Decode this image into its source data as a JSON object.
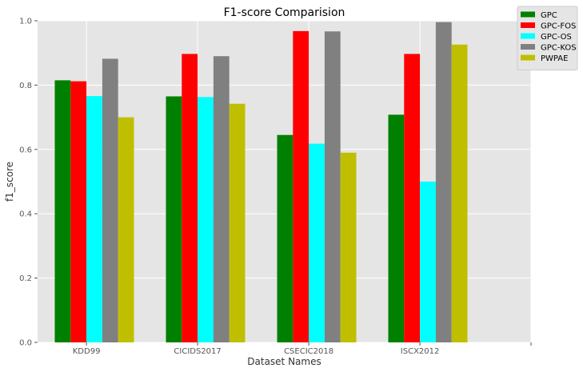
{
  "chart_data": {
    "type": "bar",
    "title": "F1-score Comparision",
    "xlabel": "Dataset Names",
    "ylabel": "f1_score",
    "categories": [
      "KDD99",
      "CICIDS2017",
      "CSECIC2018",
      "ISCX2012"
    ],
    "ylim": [
      0,
      1.0
    ],
    "yticks": [
      "0.0",
      "0.2",
      "0.4",
      "0.6",
      "0.8",
      "1.0"
    ],
    "grid": true,
    "legend_position": "top-right",
    "background_color": "#e5e5e5",
    "series": [
      {
        "name": "GPC",
        "color": "#008000",
        "values": [
          0.815,
          0.765,
          0.645,
          0.708
        ]
      },
      {
        "name": "GPC-FOS",
        "color": "#ff0000",
        "values": [
          0.812,
          0.897,
          0.968,
          0.897
        ]
      },
      {
        "name": "GPC-OS",
        "color": "#00ffff",
        "values": [
          0.766,
          0.763,
          0.618,
          0.5
        ]
      },
      {
        "name": "GPC-KOS",
        "color": "#808080",
        "values": [
          0.882,
          0.89,
          0.967,
          0.996
        ]
      },
      {
        "name": "PWPAE",
        "color": "#bfbf00",
        "values": [
          0.7,
          0.742,
          0.59,
          0.926
        ]
      }
    ]
  }
}
